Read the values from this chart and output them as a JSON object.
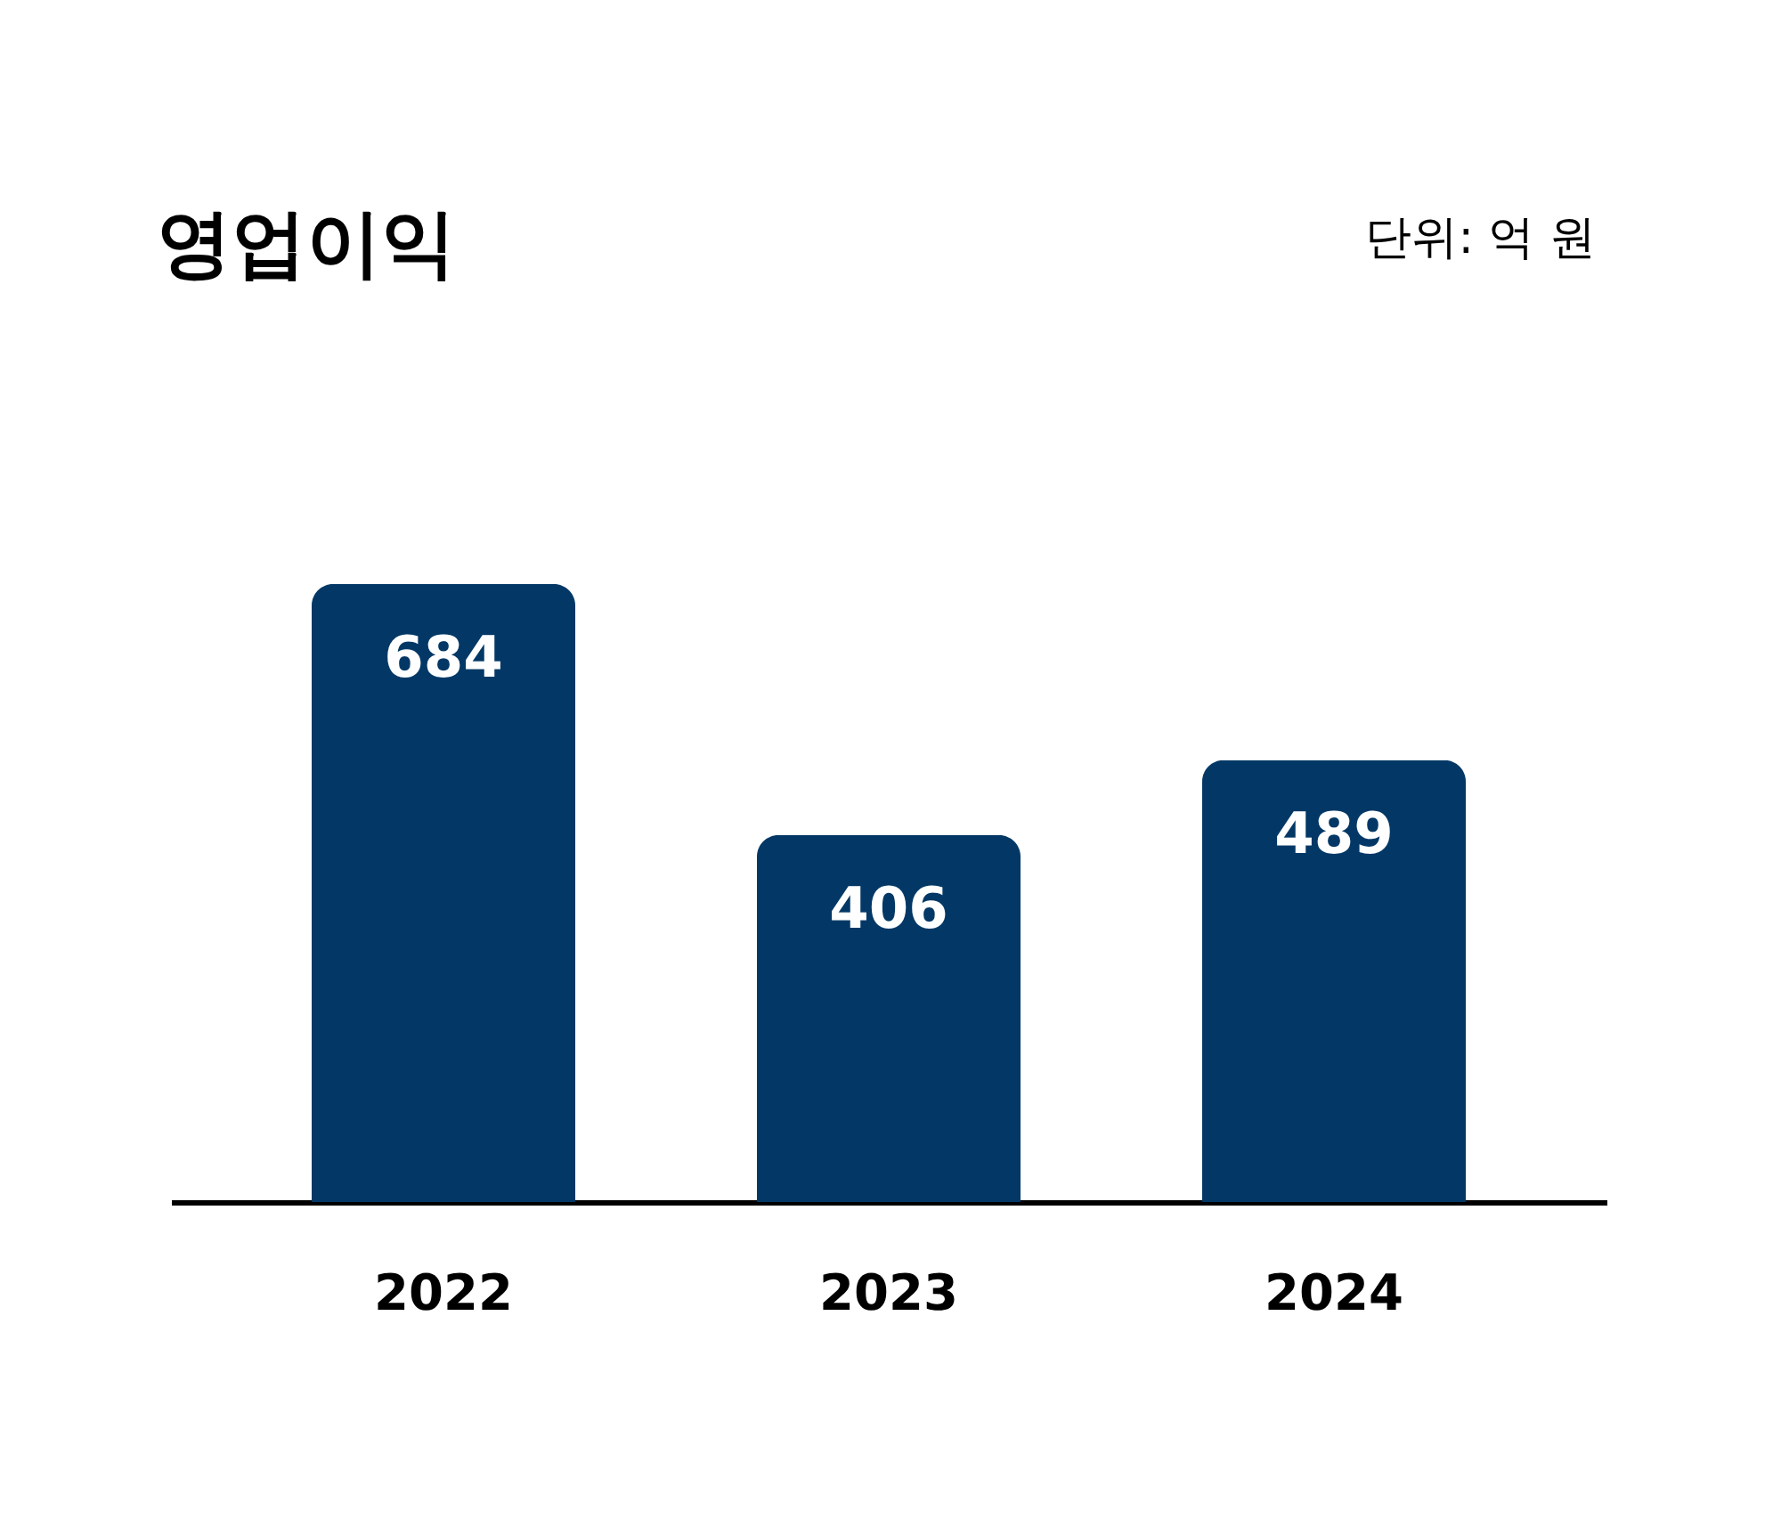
{
  "chart_data": {
    "type": "bar",
    "title": "영업이익",
    "subtitle": "단위: 억 원",
    "categories": [
      "2022",
      "2023",
      "2024"
    ],
    "values": [
      684,
      406,
      489
    ],
    "color": "#033866",
    "data_labels": true
  }
}
